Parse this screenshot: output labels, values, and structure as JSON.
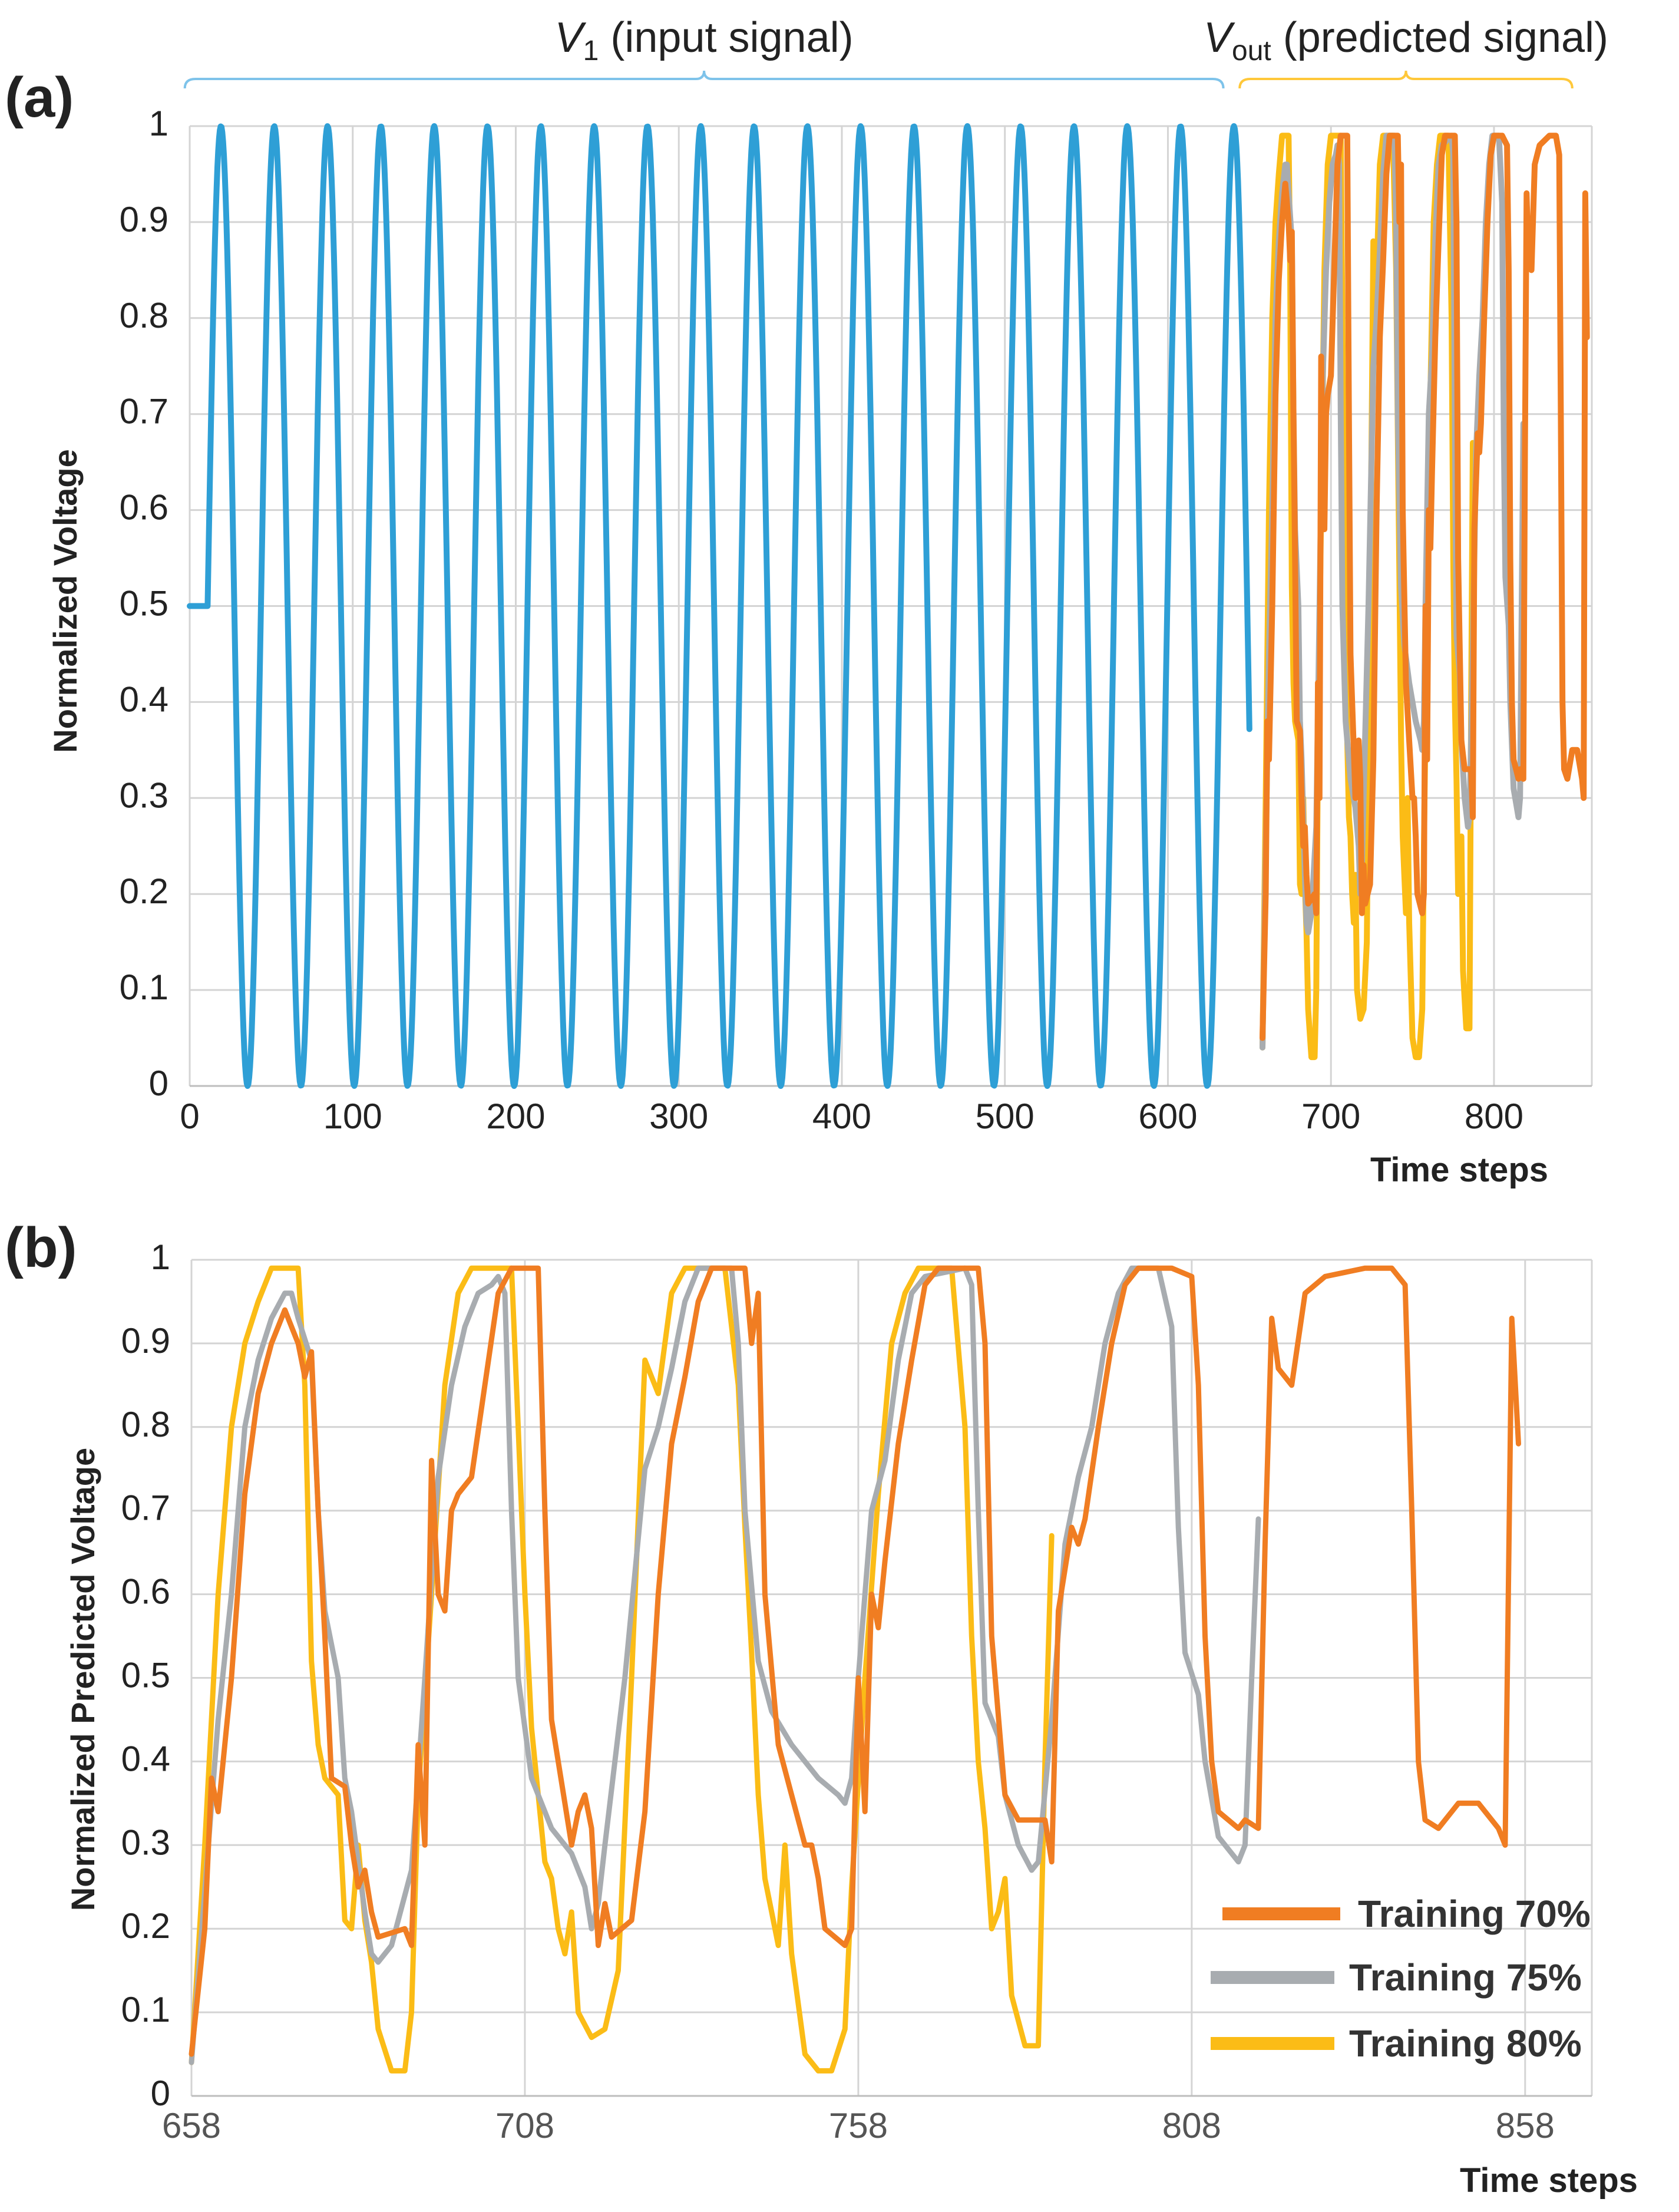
{
  "colors": {
    "input": "#2e9fd6",
    "t70": "#f07d22",
    "t75": "#a8acb0",
    "t80": "#fbbc16",
    "grid": "#d4d4d4",
    "text": "#222222",
    "tick": "#555555",
    "brace_input": "#7ec3ea",
    "brace_pred": "#ffc83a"
  },
  "chart_data": [
    {
      "panel_label": "(a)",
      "type": "line",
      "ylabel": "Normalized Voltage",
      "xlabel": "Time steps",
      "xlim": [
        0,
        860
      ],
      "ylim": [
        0,
        1
      ],
      "grid": true,
      "x_ticks": [
        "0",
        "100",
        "200",
        "300",
        "400",
        "500",
        "600",
        "700",
        "800"
      ],
      "y_ticks": [
        "0",
        "0.1",
        "0.2",
        "0.3",
        "0.4",
        "0.5",
        "0.6",
        "0.7",
        "0.8",
        "0.9",
        "1"
      ],
      "annotations": {
        "input": {
          "var": "V",
          "sub": "1",
          "text": " (input signal)",
          "x_range": [
            -3,
            634
          ]
        },
        "predicted": {
          "var": "V",
          "sub": "out",
          "text": " (predicted signal)",
          "x_range": [
            644,
            848
          ]
        }
      },
      "series": [
        {
          "name": "V1 (input signal)",
          "color_key": "input",
          "model": {
            "kind": "sine",
            "hold_until": 11,
            "hold_value": 0.5,
            "period": 32.7,
            "phase_start": 11,
            "end": 650
          }
        },
        {
          "name": "Training 80%",
          "color_key": "t80",
          "x_offset": 0,
          "source": "pred80"
        },
        {
          "name": "Training 75%",
          "color_key": "t75",
          "x_offset": 0,
          "source": "pred75"
        },
        {
          "name": "Training 70%",
          "color_key": "t70",
          "x_offset": 0,
          "source": "pred70"
        }
      ]
    },
    {
      "panel_label": "(b)",
      "type": "line",
      "ylabel": "Normalized Predicted Voltage",
      "xlabel": "Time steps",
      "xlim": [
        658,
        868
      ],
      "ylim": [
        0,
        1
      ],
      "grid": true,
      "x_ticks": [
        "658",
        "708",
        "758",
        "808",
        "858"
      ],
      "y_ticks": [
        "0",
        "0.1",
        "0.2",
        "0.3",
        "0.4",
        "0.5",
        "0.6",
        "0.7",
        "0.8",
        "0.9",
        "1"
      ],
      "legend": {
        "position": "bottom-right",
        "entries": [
          {
            "label": "Training 70%",
            "color_key": "t70"
          },
          {
            "label": "Training 75%",
            "color_key": "t75"
          },
          {
            "label": "Training 80%",
            "color_key": "t80"
          }
        ]
      },
      "series": [
        {
          "name": "Training 80%",
          "color_key": "t80",
          "source": "pred80"
        },
        {
          "name": "Training 75%",
          "color_key": "t75",
          "source": "pred75"
        },
        {
          "name": "Training 70%",
          "color_key": "t70",
          "source": "pred70"
        }
      ]
    }
  ],
  "predicted_series": {
    "pred70": [
      [
        658,
        0.05
      ],
      [
        660,
        0.2
      ],
      [
        661,
        0.38
      ],
      [
        662,
        0.34
      ],
      [
        664,
        0.5
      ],
      [
        666,
        0.72
      ],
      [
        668,
        0.84
      ],
      [
        670,
        0.9
      ],
      [
        672,
        0.94
      ],
      [
        674,
        0.9
      ],
      [
        675,
        0.86
      ],
      [
        676,
        0.89
      ],
      [
        677,
        0.7
      ],
      [
        678,
        0.55
      ],
      [
        679,
        0.38
      ],
      [
        681,
        0.37
      ],
      [
        682,
        0.3
      ],
      [
        683,
        0.25
      ],
      [
        684,
        0.27
      ],
      [
        685,
        0.22
      ],
      [
        686,
        0.19
      ],
      [
        690,
        0.2
      ],
      [
        691,
        0.18
      ],
      [
        692,
        0.42
      ],
      [
        693,
        0.3
      ],
      [
        694,
        0.76
      ],
      [
        695,
        0.6
      ],
      [
        696,
        0.58
      ],
      [
        697,
        0.7
      ],
      [
        698,
        0.72
      ],
      [
        700,
        0.74
      ],
      [
        702,
        0.85
      ],
      [
        704,
        0.96
      ],
      [
        706,
        0.99
      ],
      [
        709,
        0.99
      ],
      [
        710,
        0.99
      ],
      [
        711,
        0.7
      ],
      [
        712,
        0.45
      ],
      [
        714,
        0.35
      ],
      [
        715,
        0.3
      ],
      [
        716,
        0.34
      ],
      [
        717,
        0.36
      ],
      [
        718,
        0.32
      ],
      [
        719,
        0.18
      ],
      [
        720,
        0.23
      ],
      [
        721,
        0.19
      ],
      [
        724,
        0.21
      ],
      [
        726,
        0.34
      ],
      [
        728,
        0.6
      ],
      [
        730,
        0.78
      ],
      [
        732,
        0.86
      ],
      [
        734,
        0.95
      ],
      [
        736,
        0.99
      ],
      [
        741,
        0.99
      ],
      [
        742,
        0.9
      ],
      [
        743,
        0.96
      ],
      [
        744,
        0.6
      ],
      [
        746,
        0.42
      ],
      [
        748,
        0.36
      ],
      [
        750,
        0.3
      ],
      [
        751,
        0.3
      ],
      [
        752,
        0.26
      ],
      [
        753,
        0.2
      ],
      [
        756,
        0.18
      ],
      [
        757,
        0.2
      ],
      [
        758,
        0.5
      ],
      [
        759,
        0.34
      ],
      [
        760,
        0.6
      ],
      [
        761,
        0.56
      ],
      [
        762,
        0.64
      ],
      [
        764,
        0.78
      ],
      [
        766,
        0.88
      ],
      [
        768,
        0.97
      ],
      [
        770,
        0.99
      ],
      [
        776,
        0.99
      ],
      [
        777,
        0.9
      ],
      [
        778,
        0.55
      ],
      [
        780,
        0.36
      ],
      [
        782,
        0.33
      ],
      [
        786,
        0.33
      ],
      [
        787,
        0.28
      ],
      [
        788,
        0.58
      ],
      [
        790,
        0.68
      ],
      [
        791,
        0.66
      ],
      [
        792,
        0.69
      ],
      [
        794,
        0.8
      ],
      [
        796,
        0.9
      ],
      [
        798,
        0.97
      ],
      [
        800,
        0.99
      ],
      [
        805,
        0.99
      ],
      [
        808,
        0.98
      ],
      [
        809,
        0.85
      ],
      [
        810,
        0.55
      ],
      [
        811,
        0.4
      ],
      [
        812,
        0.34
      ],
      [
        815,
        0.32
      ],
      [
        816,
        0.33
      ],
      [
        818,
        0.32
      ],
      [
        819,
        0.66
      ],
      [
        820,
        0.93
      ],
      [
        821,
        0.87
      ],
      [
        823,
        0.85
      ],
      [
        825,
        0.96
      ],
      [
        828,
        0.98
      ],
      [
        834,
        0.99
      ],
      [
        838,
        0.99
      ],
      [
        840,
        0.97
      ],
      [
        841,
        0.7
      ],
      [
        842,
        0.4
      ],
      [
        843,
        0.33
      ],
      [
        845,
        0.32
      ],
      [
        848,
        0.35
      ],
      [
        851,
        0.35
      ],
      [
        854,
        0.32
      ],
      [
        855,
        0.3
      ],
      [
        856,
        0.93
      ],
      [
        857,
        0.78
      ]
    ],
    "pred75": [
      [
        658,
        0.04
      ],
      [
        662,
        0.45
      ],
      [
        664,
        0.6
      ],
      [
        666,
        0.8
      ],
      [
        668,
        0.88
      ],
      [
        670,
        0.93
      ],
      [
        672,
        0.96
      ],
      [
        673,
        0.96
      ],
      [
        674,
        0.93
      ],
      [
        676,
        0.88
      ],
      [
        677,
        0.7
      ],
      [
        678,
        0.58
      ],
      [
        680,
        0.5
      ],
      [
        681,
        0.38
      ],
      [
        682,
        0.34
      ],
      [
        683,
        0.28
      ],
      [
        684,
        0.22
      ],
      [
        685,
        0.17
      ],
      [
        686,
        0.16
      ],
      [
        688,
        0.18
      ],
      [
        691,
        0.27
      ],
      [
        693,
        0.5
      ],
      [
        695,
        0.74
      ],
      [
        697,
        0.85
      ],
      [
        699,
        0.92
      ],
      [
        701,
        0.96
      ],
      [
        703,
        0.97
      ],
      [
        704,
        0.98
      ],
      [
        705,
        0.96
      ],
      [
        706,
        0.7
      ],
      [
        707,
        0.5
      ],
      [
        709,
        0.38
      ],
      [
        712,
        0.32
      ],
      [
        715,
        0.29
      ],
      [
        717,
        0.25
      ],
      [
        718,
        0.2
      ],
      [
        719,
        0.23
      ],
      [
        720,
        0.3
      ],
      [
        723,
        0.5
      ],
      [
        726,
        0.75
      ],
      [
        728,
        0.8
      ],
      [
        730,
        0.87
      ],
      [
        732,
        0.95
      ],
      [
        734,
        0.99
      ],
      [
        739,
        0.99
      ],
      [
        740,
        0.9
      ],
      [
        741,
        0.7
      ],
      [
        743,
        0.52
      ],
      [
        745,
        0.46
      ],
      [
        748,
        0.42
      ],
      [
        752,
        0.38
      ],
      [
        755,
        0.36
      ],
      [
        756,
        0.35
      ],
      [
        757,
        0.38
      ],
      [
        758,
        0.5
      ],
      [
        760,
        0.7
      ],
      [
        762,
        0.76
      ],
      [
        764,
        0.88
      ],
      [
        766,
        0.96
      ],
      [
        768,
        0.98
      ],
      [
        774,
        0.99
      ],
      [
        775,
        0.97
      ],
      [
        776,
        0.7
      ],
      [
        777,
        0.47
      ],
      [
        779,
        0.43
      ],
      [
        780,
        0.36
      ],
      [
        782,
        0.3
      ],
      [
        784,
        0.27
      ],
      [
        785,
        0.28
      ],
      [
        787,
        0.45
      ],
      [
        789,
        0.66
      ],
      [
        791,
        0.74
      ],
      [
        793,
        0.8
      ],
      [
        795,
        0.9
      ],
      [
        797,
        0.96
      ],
      [
        799,
        0.99
      ],
      [
        803,
        0.99
      ],
      [
        805,
        0.92
      ],
      [
        806,
        0.68
      ],
      [
        807,
        0.53
      ],
      [
        809,
        0.48
      ],
      [
        810,
        0.4
      ],
      [
        812,
        0.31
      ],
      [
        814,
        0.29
      ],
      [
        815,
        0.28
      ],
      [
        816,
        0.3
      ],
      [
        817,
        0.5
      ],
      [
        818,
        0.69
      ]
    ],
    "pred80": [
      [
        658,
        0.04
      ],
      [
        660,
        0.3
      ],
      [
        662,
        0.6
      ],
      [
        664,
        0.8
      ],
      [
        666,
        0.9
      ],
      [
        668,
        0.95
      ],
      [
        670,
        0.99
      ],
      [
        674,
        0.99
      ],
      [
        675,
        0.85
      ],
      [
        676,
        0.52
      ],
      [
        677,
        0.42
      ],
      [
        678,
        0.38
      ],
      [
        680,
        0.36
      ],
      [
        681,
        0.21
      ],
      [
        682,
        0.2
      ],
      [
        683,
        0.3
      ],
      [
        684,
        0.21
      ],
      [
        685,
        0.16
      ],
      [
        686,
        0.08
      ],
      [
        688,
        0.03
      ],
      [
        690,
        0.03
      ],
      [
        691,
        0.1
      ],
      [
        692,
        0.36
      ],
      [
        694,
        0.6
      ],
      [
        696,
        0.85
      ],
      [
        698,
        0.96
      ],
      [
        700,
        0.99
      ],
      [
        706,
        0.99
      ],
      [
        707,
        0.8
      ],
      [
        708,
        0.6
      ],
      [
        709,
        0.44
      ],
      [
        711,
        0.28
      ],
      [
        712,
        0.26
      ],
      [
        713,
        0.2
      ],
      [
        714,
        0.17
      ],
      [
        715,
        0.22
      ],
      [
        716,
        0.1
      ],
      [
        718,
        0.07
      ],
      [
        720,
        0.08
      ],
      [
        722,
        0.15
      ],
      [
        724,
        0.5
      ],
      [
        726,
        0.88
      ],
      [
        728,
        0.84
      ],
      [
        730,
        0.96
      ],
      [
        732,
        0.99
      ],
      [
        738,
        0.99
      ],
      [
        740,
        0.85
      ],
      [
        741,
        0.68
      ],
      [
        742,
        0.53
      ],
      [
        743,
        0.36
      ],
      [
        744,
        0.26
      ],
      [
        745,
        0.22
      ],
      [
        746,
        0.18
      ],
      [
        747,
        0.3
      ],
      [
        748,
        0.17
      ],
      [
        750,
        0.05
      ],
      [
        752,
        0.03
      ],
      [
        754,
        0.03
      ],
      [
        756,
        0.08
      ],
      [
        757,
        0.25
      ],
      [
        759,
        0.5
      ],
      [
        761,
        0.72
      ],
      [
        763,
        0.9
      ],
      [
        765,
        0.96
      ],
      [
        767,
        0.99
      ],
      [
        772,
        0.99
      ],
      [
        774,
        0.8
      ],
      [
        775,
        0.55
      ],
      [
        776,
        0.4
      ],
      [
        777,
        0.32
      ],
      [
        778,
        0.2
      ],
      [
        779,
        0.22
      ],
      [
        780,
        0.26
      ],
      [
        781,
        0.12
      ],
      [
        783,
        0.06
      ],
      [
        785,
        0.06
      ],
      [
        786,
        0.4
      ],
      [
        787,
        0.67
      ]
    ]
  }
}
